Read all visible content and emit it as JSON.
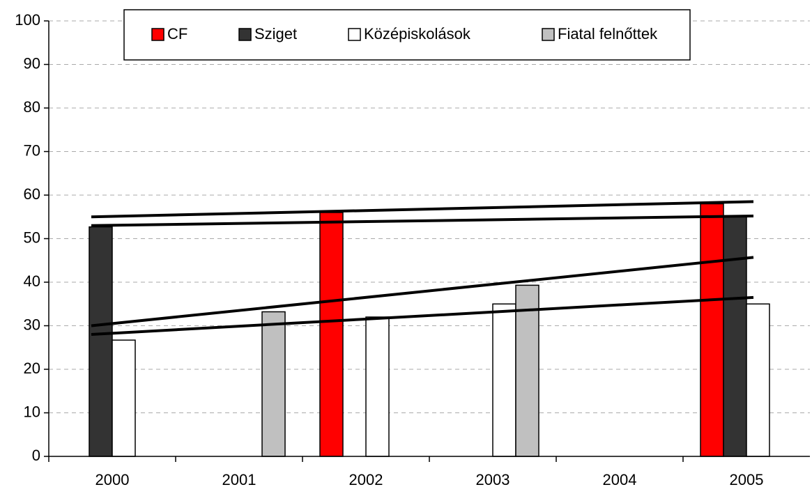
{
  "chart_data": {
    "type": "bar",
    "categories": [
      "2000",
      "2001",
      "2002",
      "2003",
      "2004",
      "2005"
    ],
    "series": [
      {
        "name": "CF",
        "color": "#ff0000",
        "values": [
          null,
          null,
          56,
          null,
          null,
          58
        ],
        "trend": [
          55,
          58.5
        ]
      },
      {
        "name": "Sziget",
        "color": "#333333",
        "values": [
          52.7,
          null,
          null,
          null,
          null,
          55
        ],
        "trend": [
          53,
          55.2
        ]
      },
      {
        "name": "Középiskolások",
        "color": "#ffffff",
        "values": [
          26.7,
          null,
          32,
          35,
          null,
          35
        ],
        "trend": [
          28,
          36.5
        ]
      },
      {
        "name": "Fiatal felnőttek",
        "color": "#c0c0c0",
        "values": [
          null,
          33.2,
          null,
          39.3,
          null,
          null
        ],
        "trend": [
          30,
          45.7
        ]
      }
    ],
    "ylim": [
      0,
      100
    ],
    "yticks": [
      0,
      10,
      20,
      30,
      40,
      50,
      60,
      70,
      80,
      90,
      100
    ],
    "grid": true,
    "legend": "top"
  }
}
